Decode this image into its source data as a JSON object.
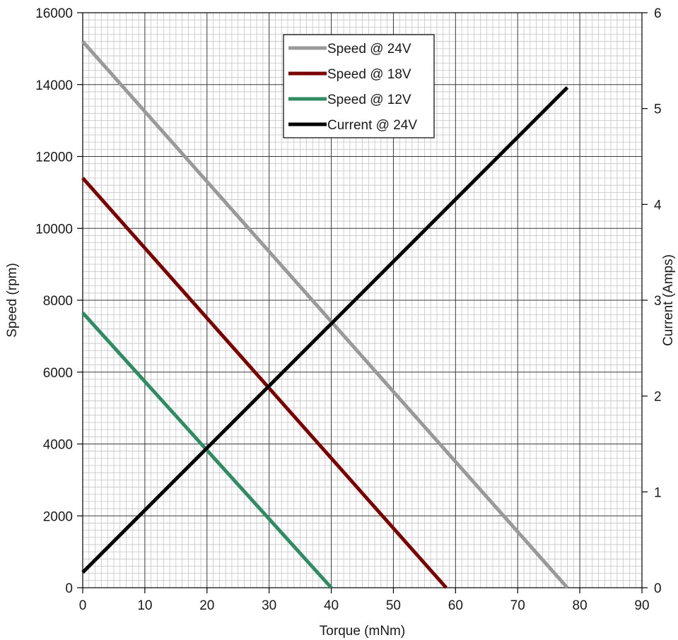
{
  "chart_data": {
    "type": "line",
    "xlabel": "Torque (mNm)",
    "ylabel": "Speed (rpm)",
    "y2label": "Current (Amps)",
    "xlim": [
      0,
      90
    ],
    "ylim": [
      0,
      16000
    ],
    "y2lim": [
      0,
      6
    ],
    "x_ticks": [
      "0",
      "10",
      "20",
      "30",
      "40",
      "50",
      "60",
      "70",
      "80",
      "90"
    ],
    "y_ticks": [
      "0",
      "2000",
      "4000",
      "6000",
      "8000",
      "10000",
      "12000",
      "14000",
      "16000"
    ],
    "y2_ticks": [
      "0",
      "1",
      "2",
      "3",
      "4",
      "5",
      "6"
    ],
    "grid": true,
    "legend_position": "top-center",
    "series": [
      {
        "name": "Speed @ 24V",
        "axis": "left",
        "color": "#999999",
        "x": [
          0,
          78
        ],
        "y": [
          15200,
          0
        ]
      },
      {
        "name": "Speed @ 18V",
        "axis": "left",
        "color": "#7a0000",
        "x": [
          0,
          58.5
        ],
        "y": [
          11400,
          0
        ]
      },
      {
        "name": "Speed @ 12V",
        "axis": "left",
        "color": "#2e8b63",
        "x": [
          0,
          40
        ],
        "y": [
          7650,
          0
        ]
      },
      {
        "name": "Current @ 24V",
        "axis": "right",
        "color": "#000000",
        "x": [
          0,
          78
        ],
        "y": [
          0.16,
          5.22
        ]
      }
    ]
  }
}
